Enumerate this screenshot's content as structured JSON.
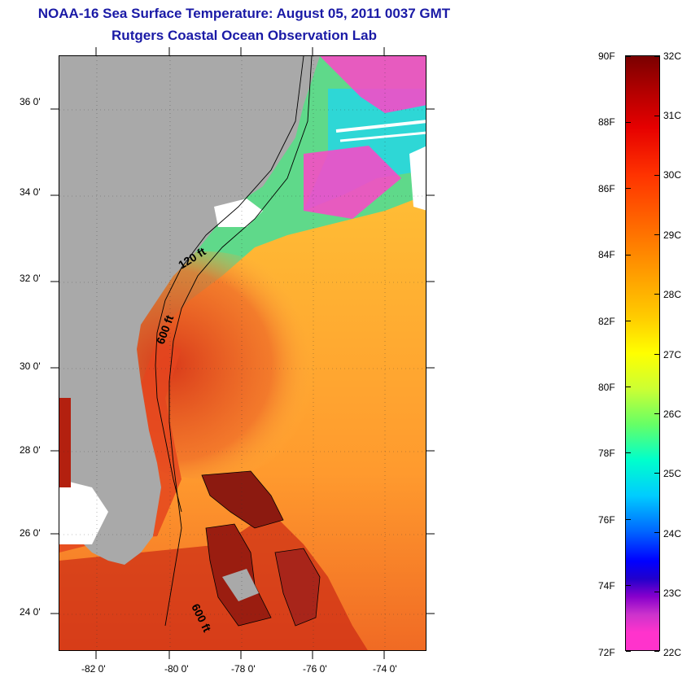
{
  "title": {
    "line1": "NOAA-16 Sea Surface Temperature:  August 05, 2011 0037 GMT",
    "line2": "Rutgers Coastal Ocean Observation Lab"
  },
  "map": {
    "lat_labels": [
      "36 0'",
      "34 0'",
      "32 0'",
      "30 0'",
      "28 0'",
      "26 0'",
      "24 0'"
    ],
    "lon_labels": [
      "-82 0'",
      "-80 0'",
      "-78 0'",
      "-76 0'",
      "-74 0'"
    ],
    "contour_labels": [
      "120 ft",
      "600 ft",
      "600 ft"
    ],
    "colors": {
      "land": "#a9a9a9",
      "cloud": "#ffffff",
      "warm_core": "#e8421f",
      "open_ocean": "#ffb43c",
      "cool_coastal": "#6cd96c",
      "cold_cloud_edge": "#ff44c8"
    }
  },
  "colorbar": {
    "fahrenheit_labels": [
      "90F",
      "88F",
      "86F",
      "84F",
      "82F",
      "80F",
      "78F",
      "76F",
      "74F",
      "72F"
    ],
    "celsius_labels": [
      "32C",
      "31C",
      "30C",
      "29C",
      "28C",
      "27C",
      "26C",
      "25C",
      "24C",
      "23C",
      "22C"
    ]
  }
}
